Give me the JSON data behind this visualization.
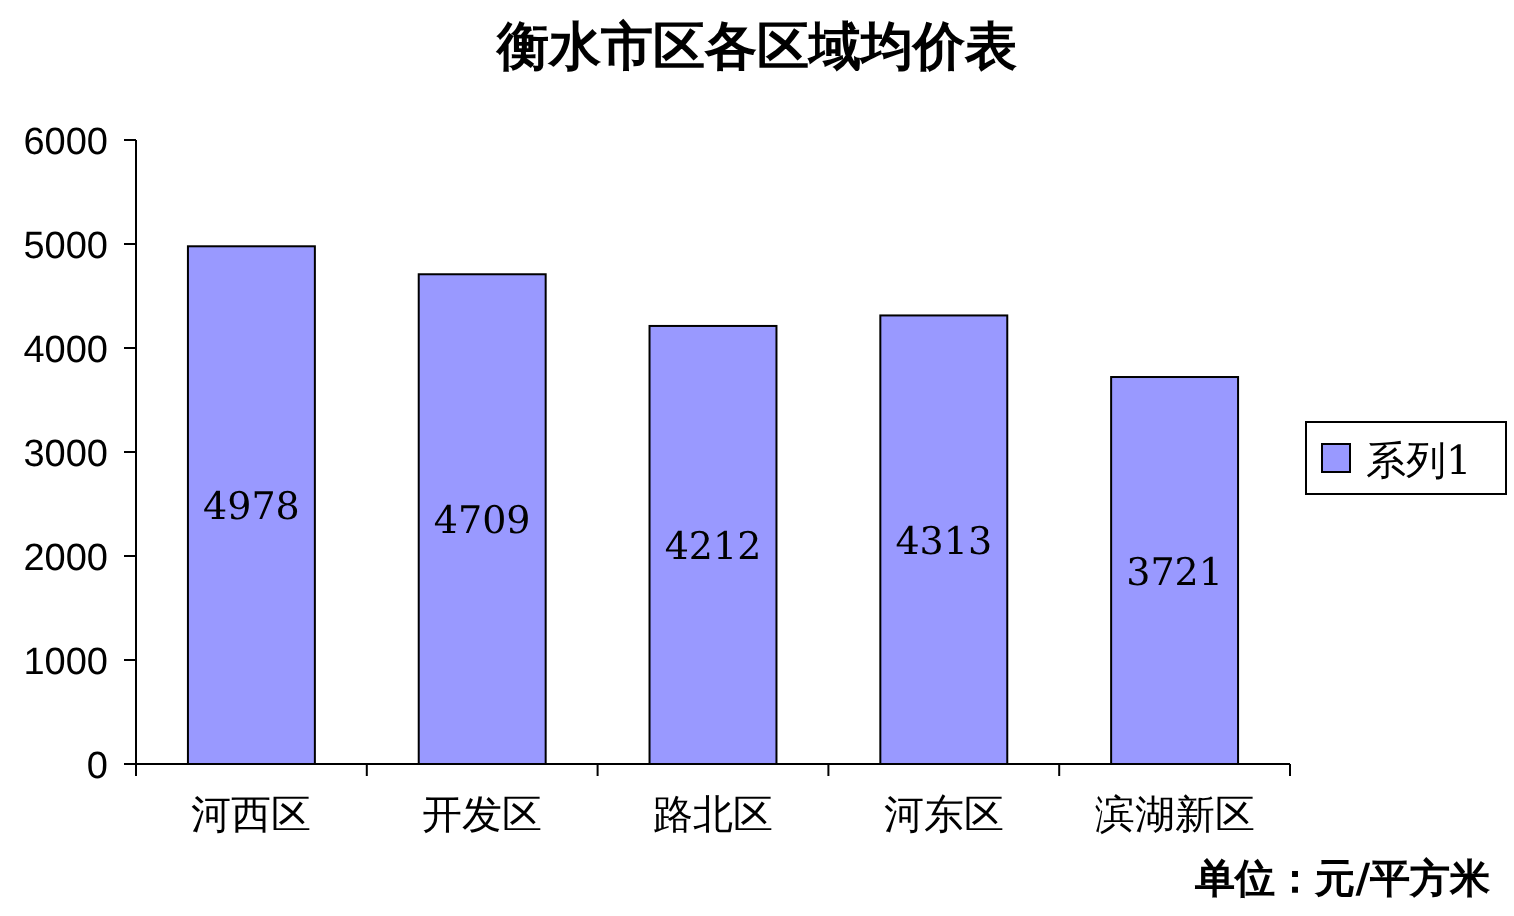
{
  "chart_data": {
    "type": "bar",
    "title": "衡水市区各区域均价表",
    "categories": [
      "河西区",
      "开发区",
      "路北区",
      "河东区",
      "滨湖新区"
    ],
    "series": [
      {
        "name": "系列1",
        "color": "#9999ff",
        "values": [
          4978,
          4709,
          4212,
          4313,
          3721
        ]
      }
    ],
    "ylim": [
      0,
      6000
    ],
    "yticks": [
      0,
      1000,
      2000,
      3000,
      4000,
      5000,
      6000
    ],
    "data_labels": true,
    "grid": false,
    "legend": "right",
    "annotations": [
      "单位：元/平方米"
    ]
  }
}
